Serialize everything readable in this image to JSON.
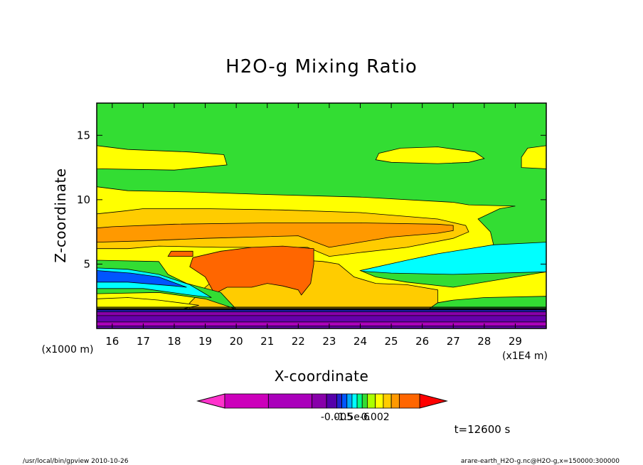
{
  "chart_data": {
    "type": "heatmap",
    "title": "H2O-g Mixing Ratio",
    "xlabel": "X-coordinate",
    "ylabel": "Z-coordinate",
    "x_unit_label": "(x1E4 m)",
    "y_unit_label": "(x1000 m)",
    "xlim": [
      15.5,
      30
    ],
    "ylim": [
      0,
      17.5
    ],
    "x_ticks": [
      16,
      17,
      18,
      19,
      20,
      21,
      22,
      23,
      24,
      25,
      26,
      27,
      28,
      29
    ],
    "y_ticks": [
      5,
      10,
      15
    ],
    "colorbar": {
      "labels": [
        {
          "value": "-0.005",
          "level": 4
        },
        {
          "value": "-1.5e-6",
          "level": 7
        },
        {
          "value": "0.002",
          "level": 11
        }
      ],
      "level_colors": [
        "#ff33cc",
        "#cc00bb",
        "#aa00bb",
        "#8800aa",
        "#5500aa",
        "#2222cc",
        "#0055ff",
        "#00aaff",
        "#00ffff",
        "#00ff88",
        "#33dd33",
        "#aaff00",
        "#ffff00",
        "#ffcc00",
        "#ff9900",
        "#ff6600",
        "#ff0000"
      ],
      "level_widths": [
        1.5,
        3,
        3,
        1,
        0.7,
        0.35,
        0.35,
        0.35,
        0.35,
        0.35,
        0.35,
        0.55,
        0.55,
        0.55,
        0.55,
        1.4,
        1.5
      ]
    },
    "regions": [
      {
        "name": "upper-green",
        "color": "#33dd33",
        "poly": [
          [
            15.5,
            0
          ],
          [
            30,
            0
          ],
          [
            30,
            17.5
          ],
          [
            15.5,
            17.5
          ]
        ]
      },
      {
        "name": "upper-yellow-left",
        "color": "#ffff00",
        "poly": [
          [
            15.5,
            12.4
          ],
          [
            18,
            12.3
          ],
          [
            19.7,
            12.7
          ],
          [
            19.6,
            13.5
          ],
          [
            18.5,
            13.7
          ],
          [
            16.5,
            13.9
          ],
          [
            15.5,
            14.2
          ]
        ]
      },
      {
        "name": "upper-yellow-right",
        "color": "#ffff00",
        "poly": [
          [
            24.5,
            13.1
          ],
          [
            25,
            12.9
          ],
          [
            26.5,
            12.8
          ],
          [
            27.5,
            12.9
          ],
          [
            28,
            13.2
          ],
          [
            27.7,
            13.7
          ],
          [
            26.5,
            14.1
          ],
          [
            25.3,
            14
          ],
          [
            24.6,
            13.6
          ]
        ]
      },
      {
        "name": "upper-yellow-right-edge",
        "color": "#ffff00",
        "poly": [
          [
            29.2,
            12.5
          ],
          [
            30,
            12.4
          ],
          [
            30,
            14.2
          ],
          [
            29.4,
            14
          ],
          [
            29.2,
            13.3
          ]
        ]
      },
      {
        "name": "cyan-right",
        "color": "#00ffff",
        "poly": [
          [
            23,
            4.6
          ],
          [
            25,
            4.3
          ],
          [
            27,
            4.2
          ],
          [
            30,
            4.4
          ],
          [
            30,
            6.7
          ],
          [
            28.3,
            6.5
          ],
          [
            27.3,
            6.3
          ],
          [
            26.2,
            6
          ],
          [
            24.8,
            5.8
          ],
          [
            23.6,
            5.6
          ]
        ]
      },
      {
        "name": "yellow-anvil",
        "color": "#ffff00",
        "poly": [
          [
            15.5,
            1.5
          ],
          [
            19.5,
            1.5
          ],
          [
            20.5,
            1.5
          ],
          [
            21.5,
            1.5
          ],
          [
            22.5,
            1.5
          ],
          [
            24,
            1.5
          ],
          [
            25,
            1.5
          ],
          [
            26,
            1.5
          ],
          [
            27,
            1.5
          ],
          [
            28,
            1.5
          ],
          [
            29,
            1.5
          ],
          [
            30,
            1.5
          ],
          [
            30,
            4.4
          ],
          [
            27,
            3.2
          ],
          [
            25.5,
            3.6
          ],
          [
            24.5,
            4
          ],
          [
            24,
            4.5
          ],
          [
            25.5,
            5.3
          ],
          [
            26.5,
            5.8
          ],
          [
            28.3,
            6.5
          ],
          [
            28.2,
            7.5
          ],
          [
            27.8,
            8.5
          ],
          [
            28.5,
            9.3
          ],
          [
            29,
            9.5
          ],
          [
            27.5,
            9.6
          ],
          [
            27,
            9.8
          ],
          [
            24,
            10.2
          ],
          [
            21,
            10.4
          ],
          [
            18.5,
            10.6
          ],
          [
            16.5,
            10.7
          ],
          [
            15.5,
            11
          ]
        ]
      },
      {
        "name": "gold-anvil",
        "color": "#ffcc00",
        "poly": [
          [
            15.5,
            6.2
          ],
          [
            16.5,
            6.2
          ],
          [
            17.5,
            6.4
          ],
          [
            19.5,
            6.3
          ],
          [
            22.3,
            6.3
          ],
          [
            23,
            5.6
          ],
          [
            24,
            5.9
          ],
          [
            25.5,
            6.3
          ],
          [
            27,
            7
          ],
          [
            27.5,
            7.5
          ],
          [
            27.4,
            8
          ],
          [
            26.5,
            8.5
          ],
          [
            24,
            9
          ],
          [
            21.5,
            9.2
          ],
          [
            19,
            9.3
          ],
          [
            17,
            9.3
          ],
          [
            16.3,
            9.1
          ],
          [
            15.5,
            8.9
          ]
        ]
      },
      {
        "name": "orange-anvil",
        "color": "#ff9900",
        "poly": [
          [
            15.5,
            6.7
          ],
          [
            17,
            6.8
          ],
          [
            19,
            7
          ],
          [
            22,
            7.2
          ],
          [
            23,
            6.3
          ],
          [
            25,
            7.1
          ],
          [
            26.5,
            7.4
          ],
          [
            27,
            7.6
          ],
          [
            27,
            8
          ],
          [
            26.5,
            8.1
          ],
          [
            24,
            8.2
          ],
          [
            21,
            8.2
          ],
          [
            18,
            8.1
          ],
          [
            16,
            7.9
          ],
          [
            15.5,
            7.8
          ]
        ]
      },
      {
        "name": "gold-lower",
        "color": "#ffcc00",
        "poly": [
          [
            18.5,
            1.5
          ],
          [
            26.5,
            1.5
          ],
          [
            26.5,
            3
          ],
          [
            25.5,
            3.4
          ],
          [
            24.5,
            3.5
          ],
          [
            23.8,
            4
          ],
          [
            23.3,
            5
          ],
          [
            22.8,
            5.2
          ],
          [
            22.2,
            5.3
          ],
          [
            21,
            5.3
          ],
          [
            19.8,
            4.8
          ],
          [
            19,
            3.2
          ],
          [
            18.5,
            2
          ]
        ]
      },
      {
        "name": "darkorange-core",
        "color": "#ff6600",
        "poly": [
          [
            19.3,
            2.7
          ],
          [
            19.7,
            3.2
          ],
          [
            20.5,
            3.2
          ],
          [
            21,
            3.5
          ],
          [
            21.5,
            3.3
          ],
          [
            22,
            3
          ],
          [
            22.1,
            2.6
          ],
          [
            22.4,
            3.5
          ],
          [
            22.5,
            5
          ],
          [
            22.5,
            6.2
          ],
          [
            21.5,
            6.4
          ],
          [
            20.5,
            6.3
          ],
          [
            19.5,
            6
          ],
          [
            18.6,
            5.5
          ],
          [
            18.5,
            4.8
          ],
          [
            19,
            4
          ]
        ]
      },
      {
        "name": "darkorange-tongue",
        "color": "#ff6600",
        "poly": [
          [
            17.8,
            5.6
          ],
          [
            18.6,
            5.6
          ],
          [
            18.6,
            6
          ],
          [
            17.9,
            6
          ]
        ]
      },
      {
        "name": "green-wedge",
        "color": "#33dd33",
        "poly": [
          [
            15.5,
            2.7
          ],
          [
            17.5,
            2.8
          ],
          [
            19,
            2.3
          ],
          [
            20,
            1.5
          ],
          [
            19.5,
            2.8
          ],
          [
            18.4,
            3.5
          ],
          [
            17.8,
            4.2
          ],
          [
            17.5,
            5.2
          ],
          [
            15.5,
            5.3
          ]
        ]
      },
      {
        "name": "cyan-left",
        "color": "#00ffff",
        "poly": [
          [
            15.5,
            3.1
          ],
          [
            17,
            3.1
          ],
          [
            18.5,
            2.6
          ],
          [
            19.2,
            2.4
          ],
          [
            18.5,
            3.4
          ],
          [
            17.5,
            4.2
          ],
          [
            16.5,
            4.6
          ],
          [
            15.5,
            4.7
          ]
        ]
      },
      {
        "name": "blue-left",
        "color": "#0055ff",
        "poly": [
          [
            15.5,
            3.6
          ],
          [
            16.5,
            3.6
          ],
          [
            18,
            3.3
          ],
          [
            18.4,
            3.2
          ],
          [
            17.5,
            4
          ],
          [
            16.6,
            4.3
          ],
          [
            15.5,
            4.5
          ]
        ]
      },
      {
        "name": "yellow-left-base",
        "color": "#ffff00",
        "poly": [
          [
            15.5,
            1.5
          ],
          [
            18.2,
            1.5
          ],
          [
            18.8,
            1.8
          ],
          [
            17.5,
            2.2
          ],
          [
            16.5,
            2.4
          ],
          [
            15.5,
            2.3
          ]
        ]
      },
      {
        "name": "green-right-base",
        "color": "#33dd33",
        "poly": [
          [
            26.2,
            1.5
          ],
          [
            30,
            1.5
          ],
          [
            30,
            2.5
          ],
          [
            28,
            2.4
          ],
          [
            27,
            2.2
          ],
          [
            26.5,
            2
          ]
        ]
      },
      {
        "name": "dark-band",
        "color": "#6600aa",
        "poly": [
          [
            15.5,
            0
          ],
          [
            30,
            0
          ],
          [
            30,
            1.5
          ],
          [
            15.5,
            1.5
          ]
        ]
      },
      {
        "name": "band-purple-top",
        "color": "#8800aa",
        "poly": [
          [
            15.5,
            1
          ],
          [
            30,
            1
          ],
          [
            30,
            1.3
          ],
          [
            15.5,
            1.3
          ]
        ]
      },
      {
        "name": "band-blue",
        "color": "#2222cc",
        "poly": [
          [
            15.5,
            1.3
          ],
          [
            30,
            1.3
          ],
          [
            30,
            1.5
          ],
          [
            15.5,
            1.5
          ]
        ]
      },
      {
        "name": "band-magenta",
        "color": "#aa00bb",
        "poly": [
          [
            15.5,
            0.2
          ],
          [
            30,
            0.2
          ],
          [
            30,
            0.5
          ],
          [
            15.5,
            0.5
          ]
        ]
      }
    ]
  },
  "time_label": "t=12600 s",
  "footer_left": "/usr/local/bin/gpview  2010-10-26",
  "footer_right": "arare-earth_H2O-g.nc@H2O-g,x=150000:300000"
}
